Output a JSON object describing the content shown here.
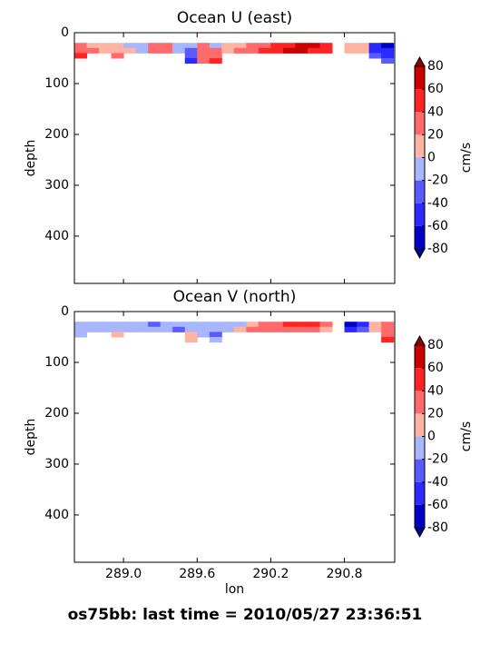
{
  "figure_title": "os75bb: last time = 2010/05/27 23:36:51",
  "chart_data": [
    {
      "type": "contourf",
      "title": "Ocean U (east)",
      "ylabel": "depth",
      "xlim": [
        288.6,
        291.21
      ],
      "ylim": [
        493,
        0
      ],
      "xticks": [
        {
          "value": 289,
          "label": "289.0"
        },
        289.6,
        290.2,
        290.8
      ],
      "show_xticklabels": false,
      "yticks": [
        0,
        100,
        200,
        300,
        400
      ],
      "x": [
        288.65,
        288.75,
        288.85,
        288.95,
        289.05,
        289.15,
        289.25,
        289.35,
        289.45,
        289.55,
        289.65,
        289.75,
        289.85,
        289.95,
        290.05,
        290.15,
        290.25,
        290.35,
        290.45,
        290.55,
        290.65,
        290.75,
        290.85,
        290.95,
        291.05,
        291.15
      ],
      "depth": [
        25,
        35,
        45,
        55
      ],
      "values": [
        [
          30,
          20,
          10,
          10,
          -10,
          -10,
          30,
          30,
          -10,
          -10,
          30,
          -10,
          20,
          20,
          30,
          40,
          50,
          60,
          70,
          70,
          60,
          null,
          10,
          10,
          -50,
          -60
        ],
        [
          40,
          30,
          20,
          20,
          10,
          -10,
          40,
          30,
          -10,
          -20,
          30,
          40,
          20,
          30,
          40,
          50,
          60,
          70,
          70,
          60,
          50,
          null,
          10,
          10,
          -50,
          -50
        ],
        [
          50,
          null,
          null,
          30,
          null,
          null,
          null,
          null,
          null,
          -30,
          40,
          30,
          null,
          null,
          null,
          null,
          null,
          null,
          null,
          null,
          null,
          null,
          null,
          null,
          -30,
          -40
        ],
        [
          null,
          null,
          null,
          null,
          null,
          null,
          null,
          null,
          null,
          -40,
          30,
          60,
          null,
          null,
          null,
          null,
          null,
          null,
          null,
          null,
          null,
          null,
          null,
          null,
          null,
          -30
        ]
      ],
      "colorbar": {
        "label": "cm/s",
        "levels": [
          -80,
          -60,
          -40,
          -20,
          0,
          20,
          40,
          60,
          80
        ],
        "colors": [
          "#0000c8",
          "#2a2aff",
          "#5a5aff",
          "#a8b6ff",
          "#ffb3a3",
          "#ff6a6a",
          "#ff2424",
          "#cc0000"
        ],
        "extend_colors": [
          "#000090",
          "#900000"
        ]
      }
    },
    {
      "type": "contourf",
      "title": "Ocean V (north)",
      "ylabel": "depth",
      "xlabel": "lon",
      "xlim": [
        288.6,
        291.21
      ],
      "ylim": [
        493,
        0
      ],
      "xticks": [
        {
          "value": 289,
          "label": "289.0"
        },
        289.6,
        290.2,
        290.8
      ],
      "show_xticklabels": true,
      "yticks": [
        0,
        100,
        200,
        300,
        400
      ],
      "x": [
        288.65,
        288.75,
        288.85,
        288.95,
        289.05,
        289.15,
        289.25,
        289.35,
        289.45,
        289.55,
        289.65,
        289.75,
        289.85,
        289.95,
        290.05,
        290.15,
        290.25,
        290.35,
        290.45,
        290.55,
        290.65,
        290.75,
        290.85,
        290.95,
        291.05,
        291.15
      ],
      "depth": [
        25,
        35,
        45,
        55
      ],
      "values": [
        [
          -10,
          -10,
          -10,
          -10,
          -10,
          -10,
          -20,
          -10,
          -10,
          -10,
          -10,
          -10,
          -10,
          -10,
          20,
          30,
          40,
          50,
          60,
          60,
          40,
          null,
          -60,
          -40,
          20,
          30
        ],
        [
          -10,
          -10,
          -10,
          -10,
          -10,
          -10,
          -10,
          -10,
          -30,
          -10,
          -10,
          -10,
          -10,
          20,
          30,
          40,
          40,
          40,
          30,
          30,
          20,
          null,
          -50,
          -30,
          20,
          40
        ],
        [
          -10,
          null,
          null,
          20,
          null,
          null,
          null,
          null,
          null,
          20,
          -10,
          -20,
          null,
          null,
          null,
          null,
          null,
          null,
          null,
          null,
          null,
          null,
          null,
          null,
          null,
          40
        ],
        [
          null,
          null,
          null,
          null,
          null,
          null,
          null,
          null,
          null,
          20,
          null,
          -10,
          null,
          null,
          null,
          null,
          null,
          null,
          null,
          null,
          null,
          null,
          null,
          null,
          null,
          50
        ]
      ],
      "colorbar": {
        "label": "cm/s",
        "levels": [
          -80,
          -60,
          -40,
          -20,
          0,
          20,
          40,
          60,
          80
        ],
        "colors": [
          "#0000c8",
          "#2a2aff",
          "#5a5aff",
          "#a8b6ff",
          "#ffb3a3",
          "#ff6a6a",
          "#ff2424",
          "#cc0000"
        ],
        "extend_colors": [
          "#000090",
          "#900000"
        ]
      }
    }
  ]
}
